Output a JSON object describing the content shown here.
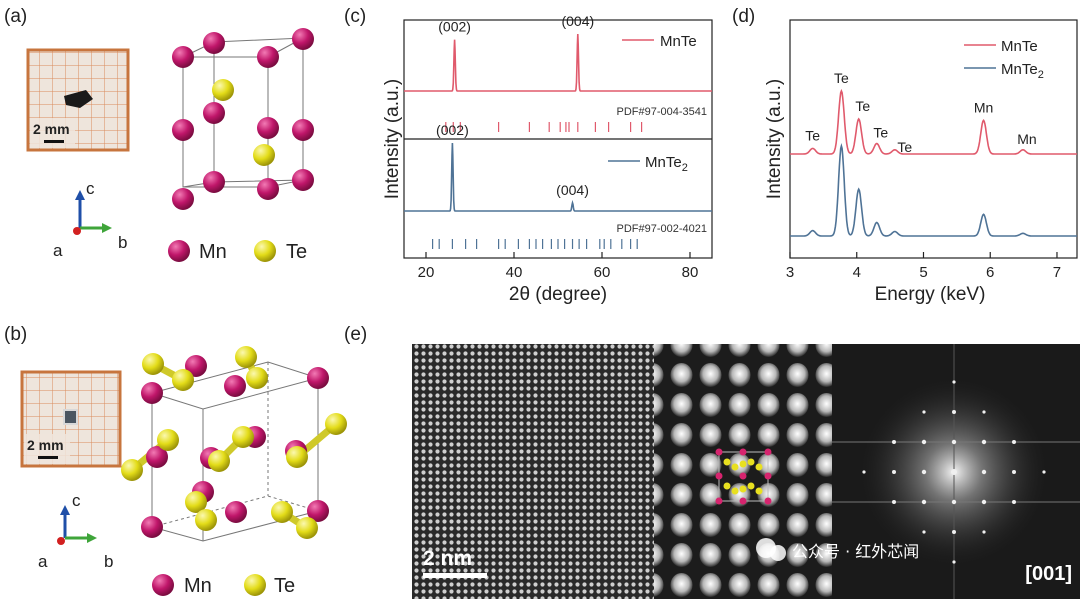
{
  "panels": [
    "(a)",
    "(b)",
    "(c)",
    "(d)",
    "(e)"
  ],
  "panel_a": {
    "scale_label": "2 mm",
    "axes": {
      "c": "c",
      "a": "a",
      "b": "b"
    },
    "legend": [
      {
        "label": "Mn",
        "color": "#c0166a"
      },
      {
        "label": "Te",
        "color": "#e8e020"
      }
    ]
  },
  "panel_b": {
    "scale_label": "2 mm",
    "axes": {
      "c": "c",
      "a": "a",
      "b": "b"
    },
    "legend": [
      {
        "label": "Mn",
        "color": "#c0166a"
      },
      {
        "label": "Te",
        "color": "#e8e020"
      }
    ]
  },
  "panel_e": {
    "scale_label": "2 nm",
    "zone_axis": "[001]",
    "watermark": "公众号 · 红外芯闻"
  },
  "colors": {
    "mnte": "#e05a6c",
    "mnte2": "#4f7396",
    "mn_atom": "#c0166a",
    "te_atom": "#e8e020"
  },
  "chart_data": [
    {
      "type": "line",
      "panel": "(c)",
      "xlabel": "2θ (degree)",
      "ylabel": "Intensity (a.u.)",
      "xlim": [
        15,
        85
      ],
      "xticks": [
        "20",
        "40",
        "60",
        "80"
      ],
      "series": [
        {
          "name": "MnTe",
          "peaks": [
            {
              "x": 26.5,
              "h": 0.9
            },
            {
              "x": 54.5,
              "h": 1.0
            }
          ],
          "peak_labels": [
            "(002)",
            "(004)"
          ],
          "reference": {
            "label": "PDF#97-004-3541",
            "lines": [
              24.5,
              26.2,
              27.8,
              36.5,
              43.5,
              48.0,
              50.5,
              51.8,
              52.5,
              54.5,
              58.5,
              61.5,
              66.5,
              69.0
            ]
          }
        },
        {
          "name": "MnTe2",
          "peaks": [
            {
              "x": 26.0,
              "h": 1.0
            },
            {
              "x": 53.3,
              "h": 0.12
            }
          ],
          "peak_labels": [
            "(002)",
            "(004)"
          ],
          "reference": {
            "label": "PDF#97-002-4021",
            "lines": [
              21.5,
              23.0,
              26.0,
              29.0,
              31.5,
              36.5,
              38.0,
              41.0,
              43.5,
              45.0,
              46.5,
              48.5,
              50.0,
              51.5,
              53.3,
              54.8,
              56.5,
              59.5,
              60.5,
              62.0,
              64.5,
              66.5,
              68.0
            ]
          }
        }
      ]
    },
    {
      "type": "line",
      "panel": "(d)",
      "xlabel": "Energy (keV)",
      "ylabel": "Intensity (a.u.)",
      "xlim": [
        3,
        7.3
      ],
      "xticks": [
        "3",
        "4",
        "5",
        "6",
        "7"
      ],
      "series": [
        {
          "name": "MnTe",
          "peaks": [
            {
              "x": 3.34,
              "h": 0.08
            },
            {
              "x": 3.77,
              "h": 0.9
            },
            {
              "x": 4.03,
              "h": 0.5
            },
            {
              "x": 4.3,
              "h": 0.15
            },
            {
              "x": 4.57,
              "h": 0.06
            },
            {
              "x": 5.9,
              "h": 0.48
            },
            {
              "x": 6.49,
              "h": 0.06
            }
          ],
          "peak_labels": [
            "Te",
            "Te",
            "Te",
            "Te",
            "Te",
            "Mn",
            "Mn"
          ]
        },
        {
          "name": "MnTe2",
          "peaks": [
            {
              "x": 3.34,
              "h": 0.06
            },
            {
              "x": 3.77,
              "h": 1.0
            },
            {
              "x": 4.03,
              "h": 0.52
            },
            {
              "x": 4.3,
              "h": 0.15
            },
            {
              "x": 4.57,
              "h": 0.05
            },
            {
              "x": 5.9,
              "h": 0.24
            },
            {
              "x": 6.49,
              "h": 0.03
            }
          ]
        }
      ]
    }
  ]
}
